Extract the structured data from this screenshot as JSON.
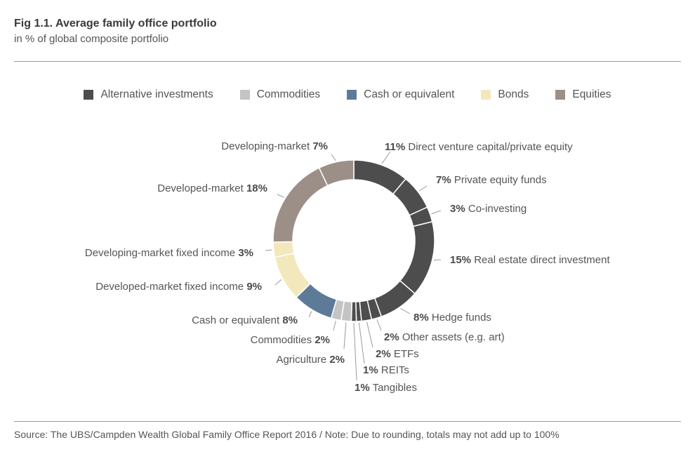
{
  "header": {
    "title": "Fig 1.1. Average family office portfolio",
    "subtitle": "in % of global composite portfolio"
  },
  "footer": {
    "source": "Source: The UBS/Campden Wealth Global Family Office Report 2016  /  Note: Due to rounding, totals may not add up to 100%"
  },
  "chart_data": {
    "type": "pie",
    "title": "Fig 1.1. Average family office portfolio",
    "subtitle": "in % of global composite portfolio",
    "donut": true,
    "legend_position": "top",
    "legend": [
      {
        "name": "Alternative investments",
        "color": "#4d4d4d"
      },
      {
        "name": "Commodities",
        "color": "#c4c4c4"
      },
      {
        "name": "Cash or equivalent",
        "color": "#5d7b98"
      },
      {
        "name": "Bonds",
        "color": "#f2e8bc"
      },
      {
        "name": "Equities",
        "color": "#9b8f88"
      }
    ],
    "slices": [
      {
        "label": "Direct venture capital/private equity",
        "value": 11,
        "value_text": "11%",
        "group": "Alternative investments",
        "color": "#4d4d4d"
      },
      {
        "label": "Private equity funds",
        "value": 7,
        "value_text": "7%",
        "group": "Alternative investments",
        "color": "#4d4d4d"
      },
      {
        "label": "Co-investing",
        "value": 3,
        "value_text": "3%",
        "group": "Alternative investments",
        "color": "#4d4d4d"
      },
      {
        "label": "Real estate direct investment",
        "value": 15,
        "value_text": "15%",
        "group": "Alternative investments",
        "color": "#4d4d4d"
      },
      {
        "label": "Hedge funds",
        "value": 8,
        "value_text": "8%",
        "group": "Alternative investments",
        "color": "#4d4d4d"
      },
      {
        "label": "Other assets (e.g. art)",
        "value": 2,
        "value_text": "2%",
        "group": "Alternative investments",
        "color": "#4d4d4d"
      },
      {
        "label": "ETFs",
        "value": 2,
        "value_text": "2%",
        "group": "Alternative investments",
        "color": "#4d4d4d"
      },
      {
        "label": "REITs",
        "value": 1,
        "value_text": "1%",
        "group": "Alternative investments",
        "color": "#4d4d4d"
      },
      {
        "label": "Tangibles",
        "value": 1,
        "value_text": "1%",
        "group": "Alternative investments",
        "color": "#4d4d4d"
      },
      {
        "label": "Agriculture",
        "value": 2,
        "value_text": "2%",
        "group": "Commodities",
        "color": "#c4c4c4"
      },
      {
        "label": "Commodities",
        "value": 2,
        "value_text": "2%",
        "group": "Commodities",
        "color": "#c4c4c4"
      },
      {
        "label": "Cash or equivalent",
        "value": 8,
        "value_text": "8%",
        "group": "Cash or equivalent",
        "color": "#5d7b98"
      },
      {
        "label": "Developed-market fixed income",
        "value": 9,
        "value_text": "9%",
        "group": "Bonds",
        "color": "#f2e8bc"
      },
      {
        "label": "Developing-market fixed income",
        "value": 3,
        "value_text": "3%",
        "group": "Bonds",
        "color": "#f2e8bc"
      },
      {
        "label": "Developed-market",
        "value": 18,
        "value_text": "18%",
        "group": "Equities",
        "color": "#9b8f88"
      },
      {
        "label": "Developing-market",
        "value": 7,
        "value_text": "7%",
        "group": "Equities",
        "color": "#9b8f88"
      }
    ]
  }
}
